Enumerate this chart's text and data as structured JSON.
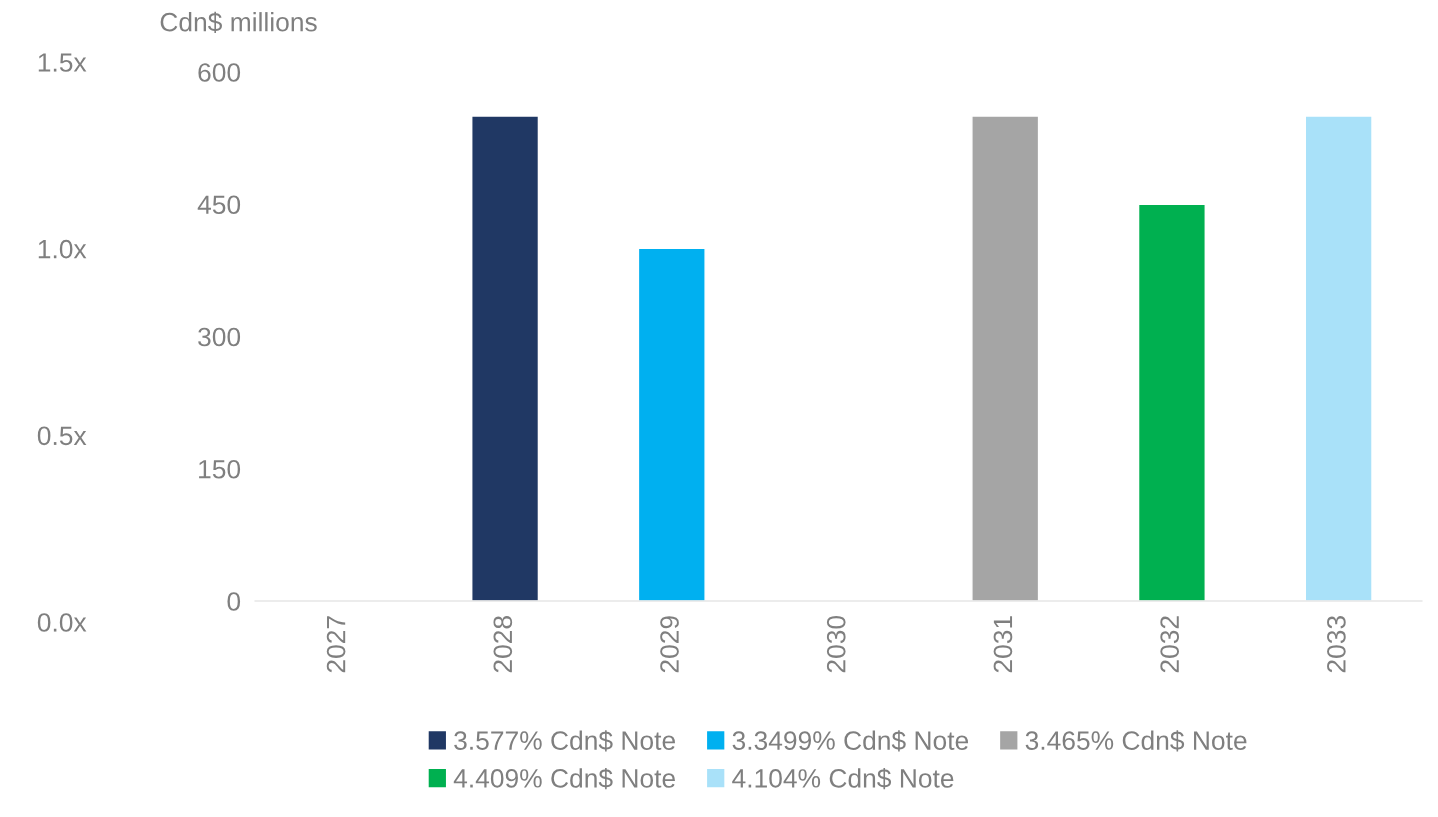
{
  "chart_data": {
    "type": "bar",
    "ylabel": "Cdn$ millions",
    "categories": [
      "2027",
      "2028",
      "2029",
      "2030",
      "2031",
      "2032",
      "2033"
    ],
    "stacked": true,
    "series": [
      {
        "name": "3.577% Cdn$ Note",
        "color": "#203864",
        "values": [
          null,
          550,
          null,
          null,
          null,
          null,
          null
        ]
      },
      {
        "name": "3.3499% Cdn$ Note",
        "color": "#00b0f0",
        "values": [
          null,
          null,
          400,
          null,
          null,
          null,
          null
        ]
      },
      {
        "name": "3.465% Cdn$ Note",
        "color": "#a5a5a5",
        "values": [
          null,
          null,
          null,
          null,
          550,
          null,
          null
        ]
      },
      {
        "name": "4.409% Cdn$ Note",
        "color": "#00b050",
        "values": [
          null,
          null,
          null,
          null,
          null,
          450,
          null
        ]
      },
      {
        "name": "4.104% Cdn$ Note",
        "color": "#a9e1f9",
        "values": [
          null,
          null,
          null,
          null,
          null,
          null,
          550
        ]
      }
    ],
    "ylim": [
      0,
      600
    ],
    "yticks": [
      0,
      150,
      300,
      450,
      600
    ],
    "y2lim": [
      0,
      1.5
    ],
    "y2ticks": [
      {
        "value": 0,
        "label": "0.0x"
      },
      {
        "value": 0.5,
        "label": "0.5x"
      },
      {
        "value": 1.0,
        "label": "1.0x"
      },
      {
        "value": 1.5,
        "label": "1.5x"
      }
    ],
    "grid": false,
    "legend": "bottom"
  }
}
